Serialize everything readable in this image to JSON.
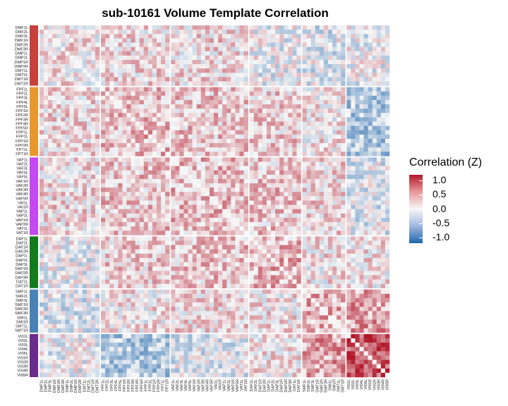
{
  "chart_data": {
    "type": "heatmap",
    "title": "sub-10161 Volume Template Correlation",
    "xlabel": "",
    "ylabel": "",
    "legend": {
      "title": "Correlation (Z)",
      "placement": "right",
      "labels": [
        "1.0",
        "0.5",
        "0.0",
        "-0.5",
        "-1.0"
      ],
      "range": [
        -1.2,
        1.2
      ]
    },
    "colors": {
      "high": "#b2182b",
      "mid": "#f7f7f7",
      "low": "#2166ac"
    },
    "groups": [
      {
        "name": "DM",
        "color": "#c8403a",
        "rows": [
          "DMF1L",
          "DMF2L",
          "DMF3L",
          "DMF1R",
          "DMF2R",
          "DMF3R",
          "DMP1L",
          "DMP2L",
          "DMP1R",
          "DMP2R",
          "DMT1L",
          "DMT2L",
          "DMT1R",
          "DMT2R"
        ]
      },
      {
        "name": "FP",
        "color": "#e8972c",
        "rows": [
          "FPF1L",
          "FPF2L",
          "FPF3L",
          "FPF4L",
          "FPF5L",
          "FPF1R",
          "FPF2R",
          "FPF3R",
          "FPF4R",
          "FPF5R",
          "FPP1L",
          "FPP2L",
          "FPP1R",
          "FPP2R",
          "FPT1L",
          "FPT1R"
        ]
      },
      {
        "name": "VA",
        "color": "#c549f0",
        "rows": [
          "VAF1L",
          "VAF2L",
          "VAF3L",
          "VAF4L",
          "VAF5L",
          "VAF1R",
          "VAF2R",
          "VAF3R",
          "VAF4R",
          "VAF5R",
          "VAI1L",
          "VAI1R",
          "VAP1L",
          "VAP2L",
          "VAP1R",
          "VAP2R",
          "VAT1L",
          "VAT1R"
        ]
      },
      {
        "name": "DA",
        "color": "#137a1e",
        "rows": [
          "DAF1L",
          "DAF2L",
          "DAF1R",
          "DAF2R",
          "DAP1L",
          "DAP2L",
          "DAP3L",
          "DAP1R",
          "DAP2R",
          "DAP3R",
          "DAT1L",
          "DAT1R"
        ]
      },
      {
        "name": "SM",
        "color": "#4a82b4",
        "rows": [
          "SMF1L",
          "SMF2L",
          "SMF3L",
          "SMF1R",
          "SMF2R",
          "SMF3R",
          "SMI1L",
          "SMI1R",
          "SMT1L",
          "SMT1R"
        ]
      },
      {
        "name": "VI",
        "color": "#6a2d8c",
        "rows": [
          "VI01L",
          "VI02L",
          "VI03L",
          "VI04L",
          "VI05L",
          "VI01R",
          "VI02R",
          "VI03R",
          "VI04R",
          "VI05R"
        ]
      }
    ],
    "block_means": [
      [
        0.1,
        0.15,
        0.15,
        -0.05,
        -0.1,
        -0.05
      ],
      [
        0.15,
        0.3,
        0.25,
        0.2,
        0.1,
        -0.35
      ],
      [
        0.15,
        0.25,
        0.3,
        0.25,
        0.15,
        -0.1
      ],
      [
        -0.05,
        0.2,
        0.25,
        0.35,
        0.1,
        0.1
      ],
      [
        -0.1,
        0.1,
        0.15,
        0.1,
        0.4,
        0.45
      ],
      [
        -0.05,
        -0.35,
        -0.1,
        0.1,
        0.45,
        0.85
      ]
    ],
    "value_note": "Cell values are approximated from block-level means of the 80x80 template correlation matrix; diagonal cells are 0."
  }
}
